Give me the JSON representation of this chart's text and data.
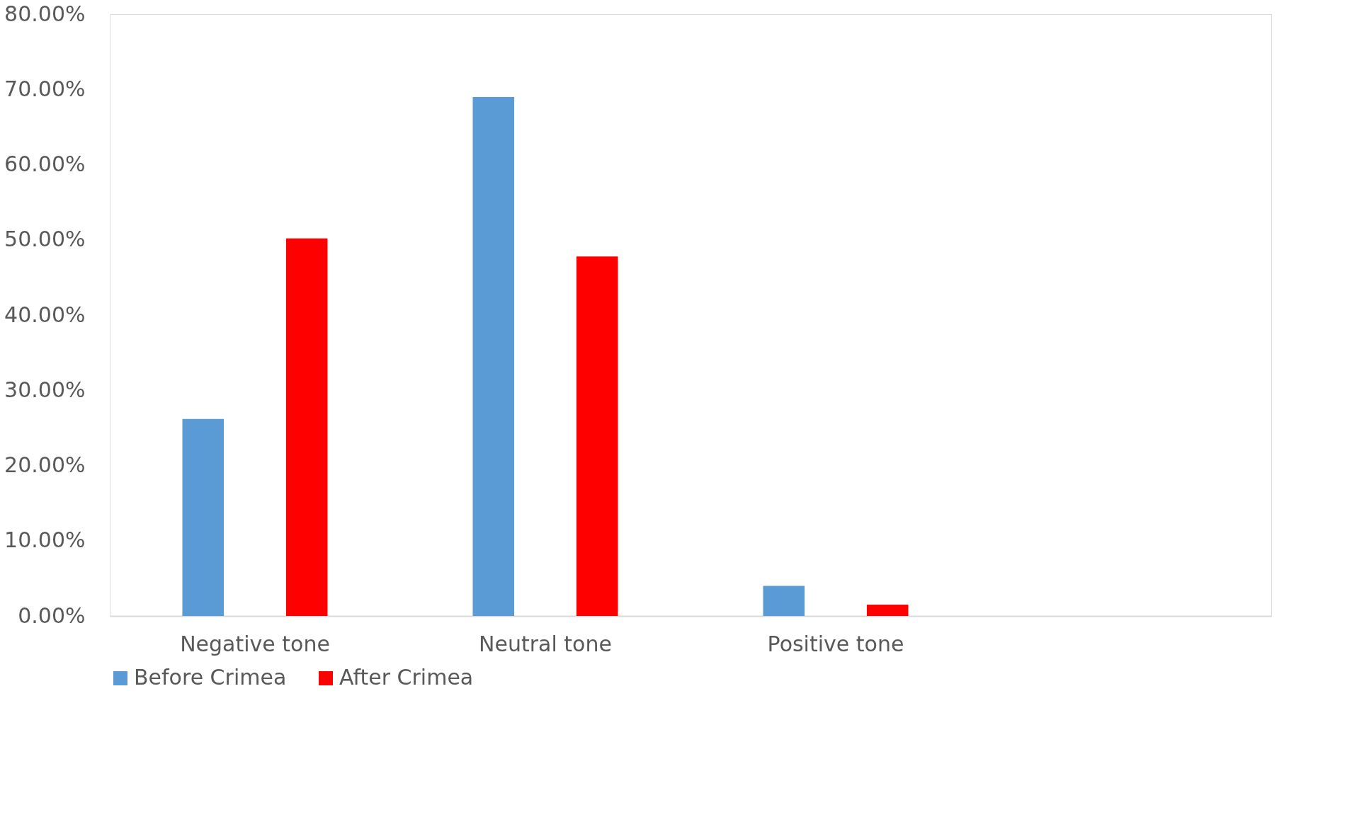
{
  "chart_data": {
    "type": "bar",
    "categories": [
      "Negative tone",
      "Neutral tone",
      "Positive tone",
      null
    ],
    "series": [
      {
        "name": "Before Crimea",
        "color": "#5b9bd5",
        "values": [
          26.2,
          69.0,
          4.0,
          null
        ]
      },
      {
        "name": "After Crimea",
        "color": "#ff0000",
        "values": [
          50.2,
          47.8,
          1.5,
          null
        ]
      }
    ],
    "ylim": [
      0,
      80
    ],
    "yticks": [
      {
        "value": 0,
        "label": "0.00%"
      },
      {
        "value": 10,
        "label": "10.00%"
      },
      {
        "value": 20,
        "label": "20.00%"
      },
      {
        "value": 30,
        "label": "30.00%"
      },
      {
        "value": 40,
        "label": "40.00%"
      },
      {
        "value": 50,
        "label": "50.00%"
      },
      {
        "value": 60,
        "label": "60.00%"
      },
      {
        "value": 70,
        "label": "70.00%"
      },
      {
        "value": 80,
        "label": "80.00%"
      }
    ],
    "grid": false,
    "legend": "bottom"
  }
}
